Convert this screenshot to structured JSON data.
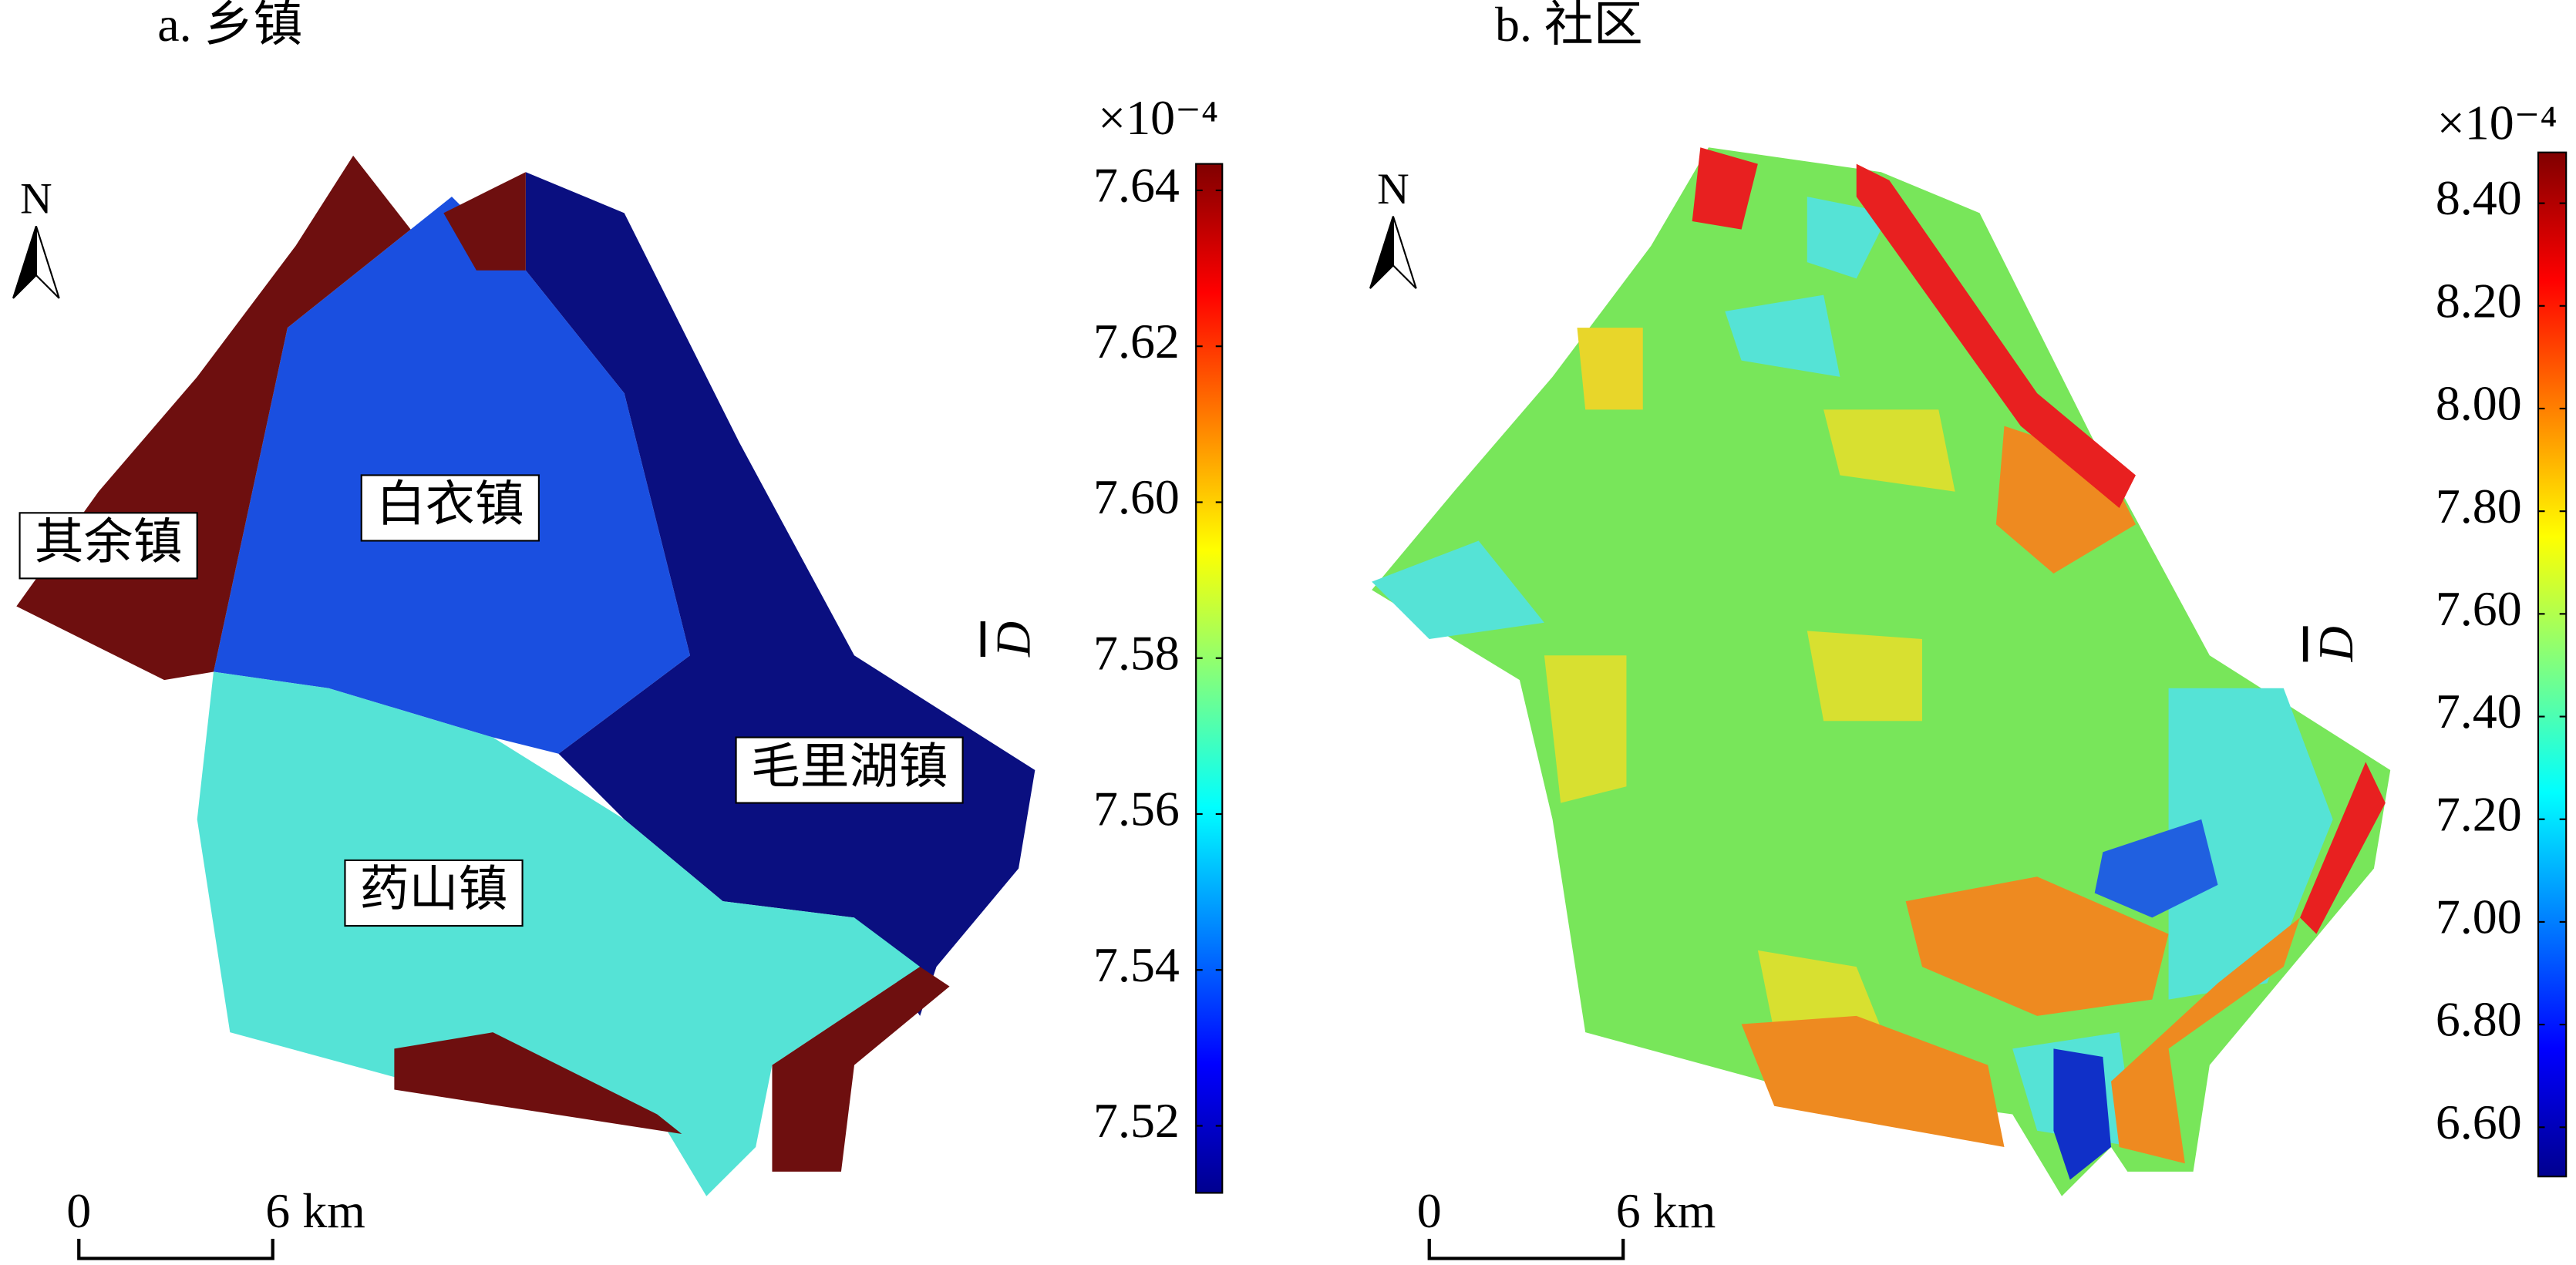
{
  "panels": [
    {
      "title": "a. 乡镇",
      "north": "N",
      "scale_bar": {
        "start": "0",
        "end": "6 km"
      },
      "labels": [
        "其余镇",
        "白衣镇",
        "毛里湖镇",
        "药山镇"
      ],
      "colorbar": {
        "exponent": "×10⁻⁴",
        "label": "D",
        "lim": [
          7.5114,
          7.6434
        ],
        "ticks": [
          7.64,
          7.62,
          {
            "value": 7.6,
            "label": "7.60"
          },
          7.58,
          7.56,
          7.54,
          7.52
        ]
      }
    },
    {
      "title": "b. 社区",
      "north": "N",
      "scale_bar": {
        "start": "0",
        "end": "6 km"
      },
      "colorbar": {
        "exponent": "×10⁻⁴",
        "label": "D",
        "lim": [
          6.504,
          8.499
        ],
        "ticks": [
          {
            "value": 8.4,
            "label": "8.40"
          },
          {
            "value": 8.2,
            "label": "8.20"
          },
          {
            "value": 8,
            "label": "8.00"
          },
          {
            "value": 7.8,
            "label": "7.80"
          },
          {
            "value": 7.6,
            "label": "7.60"
          },
          {
            "value": 7.4,
            "label": "7.40"
          },
          {
            "value": 7.2,
            "label": "7.20"
          },
          {
            "value": 7,
            "label": "7.00"
          },
          {
            "value": 6.8,
            "label": "6.80"
          },
          {
            "value": 6.6,
            "label": "6.60"
          }
        ]
      }
    }
  ]
}
